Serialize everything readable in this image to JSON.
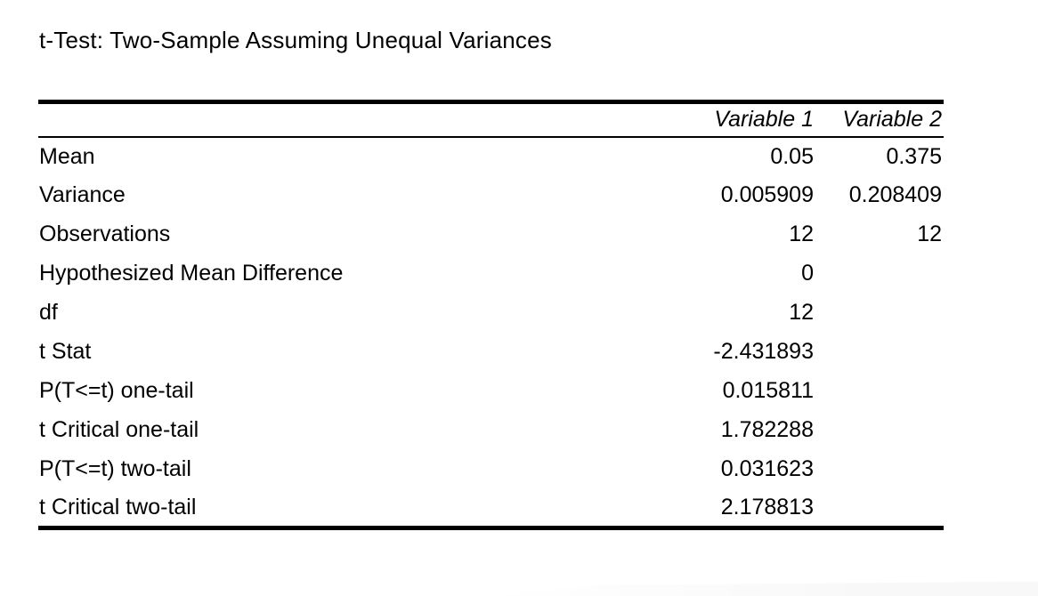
{
  "page": {
    "background_color": "#ffffff",
    "text_color": "#000000",
    "rule_color": "#000000"
  },
  "title": "t-Test: Two-Sample Assuming Unequal Variances",
  "table": {
    "header": {
      "label": "",
      "col1": "Variable 1",
      "col2": "Variable 2"
    },
    "rows": [
      {
        "label": "Mean",
        "var1": "0.05",
        "var2": "0.375"
      },
      {
        "label": "Variance",
        "var1": "0.005909",
        "var2": "0.208409"
      },
      {
        "label": "Observations",
        "var1": "12",
        "var2": "12"
      },
      {
        "label": "Hypothesized Mean Difference",
        "var1": "0",
        "var2": ""
      },
      {
        "label": "df",
        "var1": "12",
        "var2": ""
      },
      {
        "label": "t Stat",
        "var1": "-2.431893",
        "var2": ""
      },
      {
        "label": "P(T<=t) one-tail",
        "var1": "0.015811",
        "var2": ""
      },
      {
        "label": "t Critical one-tail",
        "var1": "1.782288",
        "var2": ""
      },
      {
        "label": "P(T<=t) two-tail",
        "var1": "0.031623",
        "var2": ""
      },
      {
        "label": "t Critical two-tail",
        "var1": "2.178813",
        "var2": ""
      }
    ]
  },
  "chart_data": {
    "type": "table",
    "title": "t-Test: Two-Sample Assuming Unequal Variances",
    "columns": [
      "",
      "Variable 1",
      "Variable 2"
    ],
    "rows": [
      [
        "Mean",
        0.05,
        0.375
      ],
      [
        "Variance",
        0.005909,
        0.208409
      ],
      [
        "Observations",
        12,
        12
      ],
      [
        "Hypothesized Mean Difference",
        0,
        null
      ],
      [
        "df",
        12,
        null
      ],
      [
        "t Stat",
        -2.431893,
        null
      ],
      [
        "P(T<=t) one-tail",
        0.015811,
        null
      ],
      [
        "t Critical one-tail",
        1.782288,
        null
      ],
      [
        "P(T<=t) two-tail",
        0.031623,
        null
      ],
      [
        "t Critical two-tail",
        2.178813,
        null
      ]
    ],
    "layout": {
      "header_style": "italic, right-aligned",
      "rules": "thick top rule, thin rule under header, thick bottom rule",
      "value_alignment": "right"
    }
  }
}
